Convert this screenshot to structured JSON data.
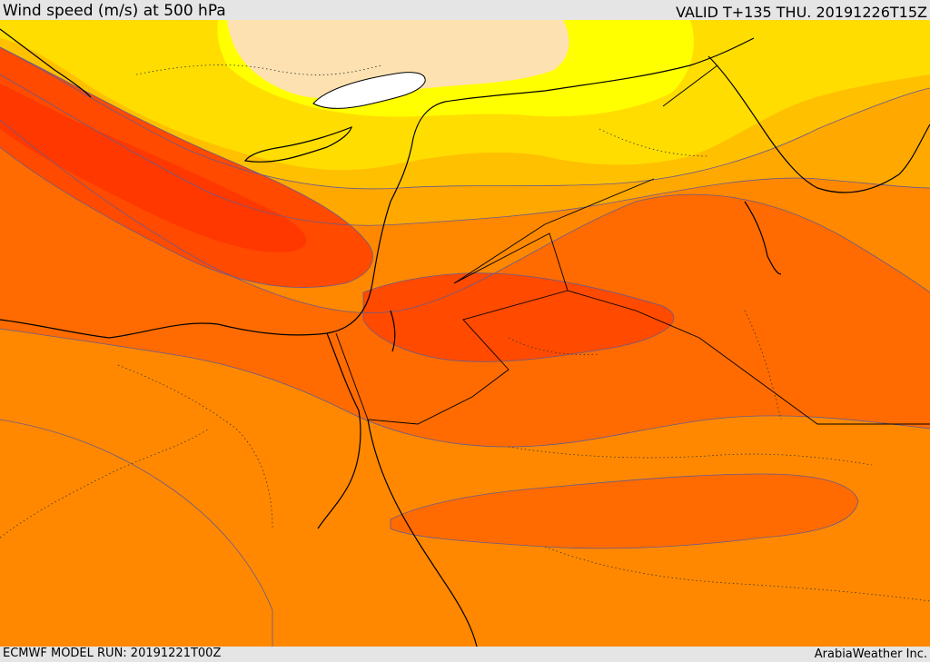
{
  "header": {
    "title": "Wind speed (m/s) at 500 hPa",
    "valid": "VALID T+135 THU. 20191226T15Z"
  },
  "footer": {
    "model_run": "ECMWF MODEL RUN: 20191221T00Z",
    "credit": "ArabiaWeather Inc."
  },
  "colors": {
    "bands": [
      "#fde1b0",
      "#ffff00",
      "#ffdd00",
      "#ffc000",
      "#ffa800",
      "#ff8800",
      "#ff6b00",
      "#ff4a00",
      "#ff3000"
    ],
    "lake": "#ffffff",
    "contour": "#6a5a8a",
    "coastline": "#000000"
  }
}
